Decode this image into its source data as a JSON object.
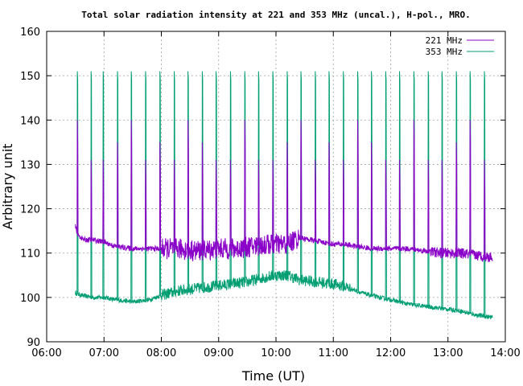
{
  "chart_data": {
    "type": "line",
    "title": "Total solar radiation intensity at 221 and 353 MHz (uncal.), H-pol., MRO.",
    "xlabel": "Time (UT)",
    "ylabel": "Arbitrary unit",
    "xlim": [
      6.0,
      14.0
    ],
    "ylim": [
      90,
      160
    ],
    "x_ticks": [
      "06:00",
      "07:00",
      "08:00",
      "09:00",
      "10:00",
      "11:00",
      "12:00",
      "13:00",
      "14:00"
    ],
    "y_ticks": [
      "90",
      "100",
      "110",
      "120",
      "130",
      "140",
      "150",
      "160"
    ],
    "grid": true,
    "legend_position": "top-right",
    "series": [
      {
        "name": "221 MHz",
        "color": "#8b00c8",
        "baseline": [
          [
            6.5,
            116
          ],
          [
            6.55,
            114
          ],
          [
            6.65,
            113
          ],
          [
            6.8,
            113
          ],
          [
            7.0,
            112.5
          ],
          [
            7.2,
            111.5
          ],
          [
            7.5,
            111
          ],
          [
            7.8,
            111
          ],
          [
            8.0,
            111
          ],
          [
            8.3,
            111
          ],
          [
            8.6,
            110.5
          ],
          [
            9.0,
            111
          ],
          [
            9.3,
            111
          ],
          [
            9.6,
            111.5
          ],
          [
            9.9,
            112
          ],
          [
            10.2,
            112
          ],
          [
            10.4,
            113.5
          ],
          [
            10.6,
            113
          ],
          [
            10.8,
            112.5
          ],
          [
            11.0,
            112
          ],
          [
            11.2,
            112
          ],
          [
            11.4,
            111.5
          ],
          [
            11.7,
            111
          ],
          [
            12.0,
            111
          ],
          [
            12.3,
            111
          ],
          [
            12.6,
            110.5
          ],
          [
            12.9,
            110
          ],
          [
            13.2,
            110
          ],
          [
            13.5,
            109.5
          ],
          [
            13.78,
            109
          ]
        ]
      },
      {
        "name": "353 MHz",
        "color": "#009e73",
        "baseline": [
          [
            6.5,
            101
          ],
          [
            6.6,
            100.5
          ],
          [
            6.8,
            100
          ],
          [
            7.0,
            100
          ],
          [
            7.2,
            99.5
          ],
          [
            7.5,
            99
          ],
          [
            7.8,
            99.5
          ],
          [
            8.0,
            100.5
          ],
          [
            8.3,
            101.5
          ],
          [
            8.6,
            102
          ],
          [
            8.9,
            102.5
          ],
          [
            9.2,
            103
          ],
          [
            9.5,
            103.5
          ],
          [
            9.8,
            104.5
          ],
          [
            10.0,
            105
          ],
          [
            10.2,
            105
          ],
          [
            10.4,
            104
          ],
          [
            10.7,
            103.5
          ],
          [
            11.0,
            103
          ],
          [
            11.2,
            102.5
          ],
          [
            11.5,
            101
          ],
          [
            11.8,
            100
          ],
          [
            12.0,
            99.5
          ],
          [
            12.3,
            98.5
          ],
          [
            12.6,
            98
          ],
          [
            12.9,
            97.5
          ],
          [
            13.2,
            97
          ],
          [
            13.5,
            96
          ],
          [
            13.78,
            95.5
          ]
        ]
      }
    ],
    "calibration_spike_times": [
      6.53,
      6.77,
      6.98,
      7.23,
      7.47,
      7.72,
      7.97,
      8.22,
      8.46,
      8.71,
      8.95,
      9.2,
      9.45,
      9.69,
      9.94,
      10.19,
      10.43,
      10.68,
      10.92,
      11.17,
      11.42,
      11.66,
      11.91,
      12.15,
      12.4,
      12.65,
      12.89,
      13.14,
      13.38,
      13.63,
      13.78
    ],
    "spike_peak_353": 151,
    "spike_peak_221": 131
  }
}
